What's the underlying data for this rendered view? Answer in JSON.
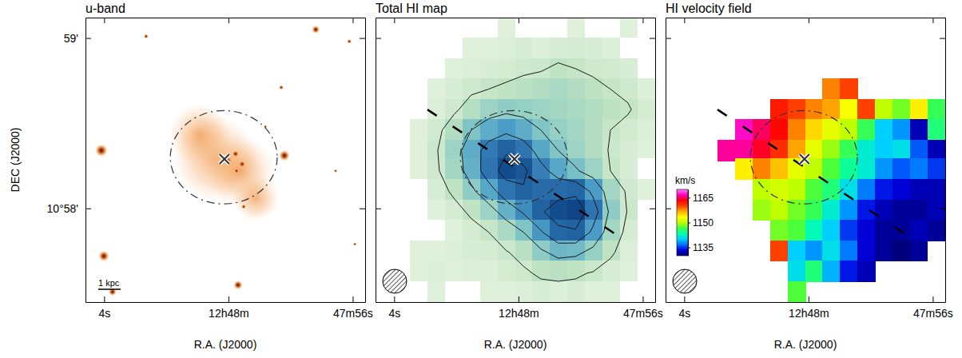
{
  "chart_data": [
    {
      "type": "image",
      "title": "u-band",
      "x_label": "R.A. (J2000)",
      "y_label": "DEC (J2000)",
      "xlim": [
        64.6,
        55.6
      ],
      "ylim": [
        57.45,
        59.12
      ],
      "xticks": [
        {
          "value": 64,
          "label": "4s"
        },
        {
          "value": 60,
          "label": "12h48m"
        },
        {
          "value": 56,
          "label": "47m56s"
        }
      ],
      "yticks": [
        {
          "value": 59,
          "label": "59'"
        },
        {
          "value": 58,
          "label": "10°58'"
        }
      ],
      "diffuse": {
        "x": [
          60.41,
          59.64,
          60.92,
          59.12
        ],
        "y": [
          58.29,
          58.22,
          58.43,
          58.06
        ],
        "size": [
          15,
          12.3,
          11,
          8.2
        ]
      },
      "stars": {
        "x": [
          64.09,
          58.2,
          64.01,
          63.73,
          59.69,
          57.19,
          56.11,
          58.3,
          62.65,
          59.51,
          58.81,
          56.55,
          55.93,
          60.02,
          59.77,
          59.56,
          59.74
        ],
        "y": [
          58.34,
          58.31,
          57.72,
          57.51,
          57.55,
          59.05,
          58.98,
          58.71,
          59.01,
          58.01,
          58.48,
          58.22,
          57.79,
          58.28,
          58.32,
          58.26,
          58.22
        ],
        "size": [
          2.2,
          1.9,
          1.9,
          1.4,
          1.6,
          1.4,
          0.8,
          0.8,
          0.8,
          0.8,
          0.6,
          0.6,
          0.6,
          1.4,
          1.1,
          1.1,
          0.8
        ]
      },
      "cross": {
        "x": 60.13,
        "y": 58.29
      },
      "ellipse": {
        "x": 60.15,
        "y": 58.3,
        "rx": 1.72,
        "ry": 0.274
      },
      "scale_bar": {
        "label": "1 kpc",
        "length": 0.72
      }
    },
    {
      "type": "contour",
      "title": "Total HI map",
      "x_label": "R.A. (J2000)",
      "xlim": [
        64.6,
        55.6
      ],
      "ylim": [
        57.45,
        59.12
      ],
      "tick_labels": "x",
      "xticks": [
        {
          "value": 64,
          "label": "4s"
        },
        {
          "value": 60,
          "label": "12h48m"
        },
        {
          "value": 56,
          "label": "47m56s"
        }
      ],
      "yticks": [
        59,
        58
      ],
      "grid_x": [
        64.32,
        63.76,
        63.2,
        62.63,
        62.07,
        61.51,
        60.95,
        60.38,
        59.82,
        59.26,
        58.7,
        58.13,
        57.57,
        57.01,
        56.45,
        55.88
      ],
      "grid_y": [
        59.06,
        58.94,
        58.82,
        58.7,
        58.58,
        58.46,
        58.34,
        58.23,
        58.11,
        57.99,
        57.87,
        57.75,
        57.63,
        57.51
      ],
      "cells": [
        [
          0,
          0,
          0,
          0,
          0,
          0,
          0,
          0.3,
          0,
          0,
          0,
          0.3,
          0,
          0,
          0.3,
          0
        ],
        [
          0,
          0,
          0,
          0,
          0,
          0.3,
          0.3,
          0.4,
          0.5,
          0.4,
          0.5,
          0.6,
          0.5,
          0.4,
          0,
          0
        ],
        [
          0,
          0,
          0,
          0,
          0.3,
          0.4,
          0.5,
          0.6,
          0.8,
          0.9,
          1.2,
          1,
          0.8,
          0.7,
          0.5,
          0
        ],
        [
          0,
          0,
          0,
          0.3,
          0.5,
          0.8,
          1,
          1.2,
          1.4,
          1.6,
          1.8,
          1.6,
          1.3,
          1,
          0.8,
          0.4
        ],
        [
          0,
          0,
          0,
          0.4,
          0.8,
          1.5,
          2.2,
          2.6,
          2.4,
          2.2,
          2,
          1.8,
          1.6,
          1.3,
          1.1,
          0.6
        ],
        [
          0,
          0,
          0.3,
          0.7,
          1.6,
          3,
          4,
          4.6,
          4,
          3,
          2.4,
          2,
          1.6,
          1,
          0.7,
          0.4
        ],
        [
          0,
          0,
          0.3,
          0.9,
          2.2,
          4,
          5.8,
          6.8,
          6,
          4.2,
          3,
          2.2,
          1.6,
          0.9,
          0.5,
          0.3
        ],
        [
          0,
          0,
          0.3,
          0.8,
          2,
          3.8,
          6,
          7.8,
          7.4,
          5.6,
          4.2,
          3.2,
          2.2,
          1,
          0.5,
          0
        ],
        [
          0,
          0,
          0,
          0.5,
          1.2,
          2.6,
          4.2,
          6,
          6.8,
          6.4,
          6.4,
          6.6,
          4.6,
          2,
          0.8,
          0.3
        ],
        [
          0,
          0,
          0,
          0.3,
          0.6,
          1.2,
          2.2,
          3.8,
          5.2,
          6.8,
          7.8,
          8.2,
          6,
          2.6,
          0.9,
          0
        ],
        [
          0,
          0,
          0,
          0,
          0.3,
          0.6,
          1,
          1.8,
          3,
          4.8,
          6.6,
          6.8,
          4.6,
          2,
          0.6,
          0
        ],
        [
          0,
          0,
          0.3,
          0.3,
          0.4,
          0.5,
          0.6,
          0.9,
          1.4,
          2.6,
          3.6,
          3.4,
          2.4,
          1.2,
          0.4,
          0
        ],
        [
          0,
          0,
          0.3,
          0.4,
          0.3,
          0.4,
          0.4,
          0.6,
          0.8,
          1.2,
          1.4,
          1.2,
          0.9,
          0.5,
          0.3,
          0
        ],
        [
          0,
          0,
          0,
          0.3,
          0,
          0,
          0.3,
          0.3,
          0.4,
          0.5,
          0.4,
          0.5,
          0.3,
          0.3,
          0,
          0
        ]
      ],
      "contour_levels": [
        1,
        3,
        5,
        7
      ],
      "cross": {
        "x": 60.13,
        "y": 58.29
      },
      "ellipse": {
        "x": 60.15,
        "y": 58.3,
        "rx": 1.72,
        "ry": 0.274
      },
      "slit": {
        "x": [
          62.93,
          56.89
        ],
        "y": [
          58.58,
          57.85
        ]
      }
    },
    {
      "type": "heatmap",
      "title": "HI velocity field",
      "x_label": "R.A. (J2000)",
      "xlim": [
        64.6,
        55.6
      ],
      "ylim": [
        57.45,
        59.12
      ],
      "tick_labels": "x",
      "xticks": [
        {
          "value": 64,
          "label": "4s"
        },
        {
          "value": 60,
          "label": "12h48m"
        },
        {
          "value": 56,
          "label": "47m56s"
        }
      ],
      "yticks": [
        59,
        58
      ],
      "grid_x": [
        64.32,
        63.76,
        63.2,
        62.63,
        62.07,
        61.51,
        60.95,
        60.38,
        59.82,
        59.26,
        58.7,
        58.13,
        57.57,
        57.01,
        56.45,
        55.88
      ],
      "grid_y": [
        59.06,
        58.94,
        58.82,
        58.7,
        58.58,
        58.46,
        58.34,
        58.23,
        58.11,
        57.99,
        57.87,
        57.75,
        57.63,
        57.51
      ],
      "cells": [
        [
          null,
          null,
          null,
          null,
          null,
          null,
          null,
          null,
          null,
          null,
          null,
          null,
          null,
          null,
          null,
          null
        ],
        [
          null,
          null,
          null,
          null,
          null,
          null,
          null,
          null,
          null,
          null,
          null,
          null,
          null,
          null,
          null,
          null
        ],
        [
          null,
          null,
          null,
          null,
          null,
          null,
          null,
          null,
          null,
          null,
          null,
          null,
          null,
          null,
          null,
          null
        ],
        [
          null,
          null,
          null,
          null,
          null,
          null,
          null,
          null,
          null,
          1158,
          1160,
          null,
          null,
          null,
          null,
          null
        ],
        [
          null,
          null,
          null,
          null,
          null,
          null,
          1162,
          1160,
          1158,
          1157,
          1153,
          1160,
          1150,
          1148,
          1154,
          1146
        ],
        [
          null,
          null,
          null,
          null,
          1167,
          1165,
          1163,
          1158,
          1155,
          1152,
          1150,
          1146,
          1140,
          1138,
          1132,
          1145
        ],
        [
          null,
          null,
          null,
          1166,
          1166,
          1164,
          1161,
          1157,
          1152,
          1149,
          1146,
          1142,
          1140,
          1141,
          1136,
          1132
        ],
        [
          null,
          null,
          null,
          null,
          1154,
          1158,
          1156,
          1152,
          1150,
          1147,
          1144,
          1142,
          1138,
          1136,
          1137,
          1135
        ],
        [
          null,
          null,
          null,
          null,
          null,
          1150,
          1151,
          1150,
          1147,
          1145,
          1141,
          1137,
          1134,
          1133,
          1132,
          1132
        ],
        [
          null,
          null,
          null,
          null,
          null,
          1149,
          1150,
          1148,
          1146,
          1142,
          1138,
          1134,
          1132,
          1131,
          1131,
          1132
        ],
        [
          null,
          null,
          null,
          null,
          null,
          null,
          1148,
          1147,
          1143,
          1140,
          1135,
          1133,
          1131,
          1131,
          1132,
          1131
        ],
        [
          null,
          null,
          null,
          null,
          null,
          null,
          1160,
          1140,
          1138,
          1141,
          1137,
          1133,
          1131,
          1130,
          1131,
          null
        ],
        [
          null,
          null,
          null,
          null,
          null,
          null,
          null,
          1141,
          1145,
          1139,
          1134,
          1132,
          null,
          null,
          null,
          null
        ],
        [
          null,
          null,
          null,
          null,
          null,
          null,
          null,
          1147,
          null,
          null,
          null,
          null,
          null,
          null,
          null,
          null
        ]
      ],
      "colorbar": {
        "range": [
          1130,
          1170
        ],
        "ticks": [
          1135,
          1150,
          1165
        ],
        "label": "km/s"
      },
      "cross": {
        "x": 60.13,
        "y": 58.29
      },
      "ellipse": {
        "x": 60.15,
        "y": 58.3,
        "rx": 1.72,
        "ry": 0.274
      },
      "slit": {
        "x": [
          62.93,
          56.89
        ],
        "y": [
          58.58,
          57.85
        ]
      }
    }
  ]
}
